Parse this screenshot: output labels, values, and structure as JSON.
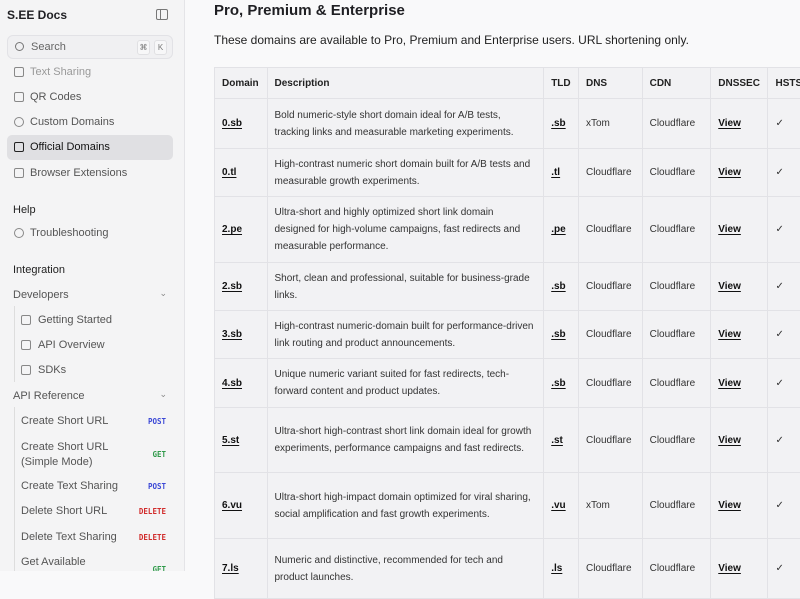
{
  "sidebar": {
    "title": "S.EE Docs",
    "search": {
      "placeholder": "Search",
      "k1": "⌘",
      "k2": "K"
    },
    "items": [
      {
        "label": "Text Sharing"
      },
      {
        "label": "QR Codes"
      },
      {
        "label": "Custom Domains"
      },
      {
        "label": "Official Domains",
        "active": true
      },
      {
        "label": "Browser Extensions"
      }
    ],
    "help": {
      "title": "Help",
      "items": [
        {
          "label": "Troubleshooting"
        }
      ]
    },
    "integration": {
      "title": "Integration",
      "developers": "Developers",
      "dev_items": [
        {
          "label": "Getting Started"
        },
        {
          "label": "API Overview"
        },
        {
          "label": "SDKs"
        }
      ],
      "api_ref": "API Reference",
      "api_items": [
        {
          "label": "Create Short URL",
          "method": "POST"
        },
        {
          "label": "Create Short URL (Simple Mode)",
          "method": "GET"
        },
        {
          "label": "Create Text Sharing",
          "method": "POST"
        },
        {
          "label": "Delete Short URL",
          "method": "DELETE"
        },
        {
          "label": "Delete Text Sharing",
          "method": "DELETE"
        },
        {
          "label": "Get Available Domains for",
          "method": "GET"
        }
      ]
    }
  },
  "colors": {
    "POST": "#3b48d6",
    "GET": "#2f9a4a",
    "DELETE": "#d12c2c"
  },
  "main": {
    "title": "Pro, Premium & Enterprise",
    "intro": "These domains are available to Pro, Premium and Enterprise users. URL shortening only.",
    "headers": [
      "Domain",
      "Description",
      "TLD",
      "DNS",
      "CDN",
      "DNSSEC",
      "HSTS"
    ],
    "rows": [
      [
        "0.sb",
        "Bold numeric-style short domain ideal for A/B tests, tracking links and measurable marketing experiments.",
        ".sb",
        "xTom",
        "Cloudflare",
        "View",
        "✓"
      ],
      [
        "0.tl",
        "High-contrast numeric short domain built for A/B tests and measurable growth experiments.",
        ".tl",
        "Cloudflare",
        "Cloudflare",
        "View",
        "✓"
      ],
      [
        "2.pe",
        "Ultra-short and highly optimized short link domain designed for high-volume campaigns, fast redirects and measurable performance.",
        ".pe",
        "Cloudflare",
        "Cloudflare",
        "View",
        "✓"
      ],
      [
        "2.sb",
        "Short, clean and professional, suitable for business-grade links.",
        ".sb",
        "Cloudflare",
        "Cloudflare",
        "View",
        "✓"
      ],
      [
        "3.sb",
        "High-contrast numeric-domain built for performance-driven link routing and product announcements.",
        ".sb",
        "Cloudflare",
        "Cloudflare",
        "View",
        "✓"
      ],
      [
        "4.sb",
        "Unique numeric variant suited for fast redirects, tech-forward content and product updates.",
        ".sb",
        "Cloudflare",
        "Cloudflare",
        "View",
        "✓"
      ],
      [
        "5.st",
        "Ultra-short high-contrast short link domain ideal for growth experiments, performance campaigns and fast redirects.",
        ".st",
        "Cloudflare",
        "Cloudflare",
        "View",
        "✓"
      ],
      [
        "6.vu",
        "Ultra-short high-impact domain optimized for viral sharing, social amplification and fast growth experiments.",
        ".vu",
        "xTom",
        "Cloudflare",
        "View",
        "✓"
      ],
      [
        "7.ls",
        "Numeric and distinctive, recommended for tech and product launches.",
        ".ls",
        "Cloudflare",
        "Cloudflare",
        "View",
        "✓"
      ]
    ]
  }
}
